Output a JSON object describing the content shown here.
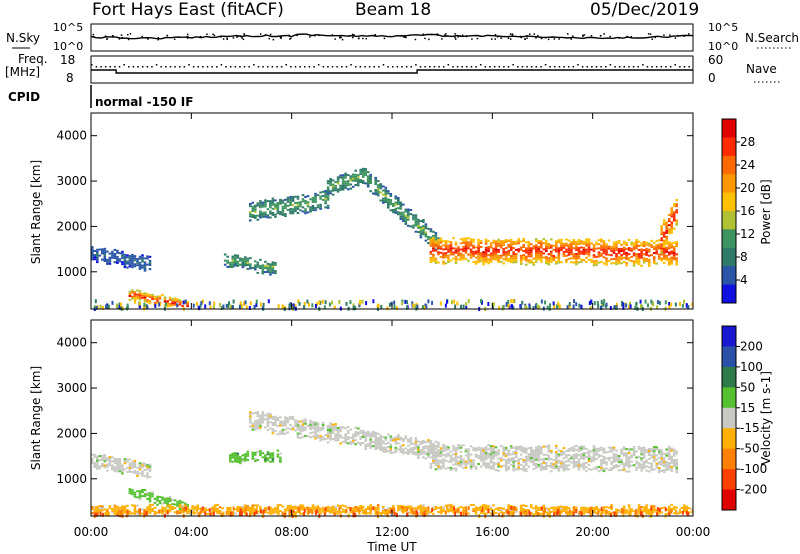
{
  "header": {
    "station": "Fort Hays East (fitACF)",
    "beam": "Beam 18",
    "date": "05/Dec/2019"
  },
  "colors": {
    "power_scale": [
      "#1010e0",
      "#2a55a8",
      "#2f7a68",
      "#3d9460",
      "#b0c232",
      "#ffc000",
      "#ff9800",
      "#ff6a00",
      "#ff2a00",
      "#e00000"
    ],
    "velocity_scale": [
      "#1818d0",
      "#2a50a8",
      "#2e7a4a",
      "#55c030",
      "#c9c9c4",
      "#ffb000",
      "#ff8000",
      "#ff4000",
      "#e00000"
    ]
  },
  "top_panels": {
    "nsky_label": "N.Sky",
    "nsky_ticks": [
      "10^5",
      "10^0"
    ],
    "nsearch_label": "N.Search",
    "nsearch_ticks": [
      "10^5",
      "10^0"
    ],
    "freq_label": "Freq.",
    "freq_unit": "[MHz]",
    "freq_ticks": [
      "18",
      "8"
    ],
    "nave_label": "Nave",
    "nave_ticks": [
      "60",
      "0"
    ],
    "cpid_label": "CPID",
    "cpid_text": "normal -150 IF"
  },
  "chart_data": [
    {
      "type": "heatmap",
      "ylabel": "Slant Range [km]",
      "yticks": [
        "4000",
        "3000",
        "2000",
        "1000"
      ],
      "ylim": [
        180,
        4500
      ],
      "colorbar_label": "Power [dB]",
      "colorbar_ticks": [
        "28",
        "24",
        "20",
        "16",
        "12",
        "8",
        "4"
      ],
      "colorbar_range": [
        0,
        32
      ],
      "features": [
        {
          "from_hour": 0.0,
          "to_hour": 2.4,
          "center_km": [
            1400,
            1150
          ],
          "width_km": 150,
          "level": "weak"
        },
        {
          "from_hour": 1.5,
          "to_hour": 3.9,
          "center_km": [
            480,
            220
          ],
          "width_km": 90,
          "level": "strong"
        },
        {
          "from_hour": 5.3,
          "to_hour": 7.3,
          "center_km": [
            1250,
            1050
          ],
          "width_km": 130,
          "level": "mid"
        },
        {
          "from_hour": 6.3,
          "to_hour": 9.4,
          "center_km": [
            2300,
            2550
          ],
          "width_km": 180,
          "level": "mid"
        },
        {
          "from_hour": 9.4,
          "to_hour": 11.0,
          "center_km": [
            2850,
            3100
          ],
          "width_km": 170,
          "level": "mid"
        },
        {
          "from_hour": 11.0,
          "to_hour": 13.8,
          "center_km": [
            3000,
            1600
          ],
          "width_km": 180,
          "level": "mid"
        },
        {
          "from_hour": 13.5,
          "to_hour": 23.4,
          "center_km": [
            1450,
            1400
          ],
          "width_km": 260,
          "level": "strong"
        },
        {
          "from_hour": 22.7,
          "to_hour": 23.4,
          "center_km": [
            1700,
            2400
          ],
          "width_km": 300,
          "level": "strong"
        }
      ]
    },
    {
      "type": "heatmap",
      "ylabel": "Slant Range [km]",
      "yticks": [
        "4000",
        "3000",
        "2000",
        "1000"
      ],
      "ylim": [
        180,
        4500
      ],
      "colorbar_label": "Velocity [m s-1]",
      "colorbar_ticks": [
        "200",
        "100",
        "50",
        "15",
        "-15",
        "-50",
        "-100",
        "-200"
      ],
      "colorbar_range": [
        -250,
        250
      ],
      "features": [
        {
          "from_hour": 0.0,
          "to_hour": 2.4,
          "center_km": [
            1400,
            1150
          ],
          "width_km": 150,
          "velocity": "near-zero"
        },
        {
          "from_hour": 1.5,
          "to_hour": 3.9,
          "center_km": [
            700,
            350
          ],
          "width_km": 100,
          "velocity": "15 to 50"
        },
        {
          "from_hour": 5.5,
          "to_hour": 7.5,
          "center_km": [
            1450,
            1500
          ],
          "width_km": 110,
          "velocity": "15 to 50"
        },
        {
          "from_hour": 6.3,
          "to_hour": 13.8,
          "center_km": [
            2300,
            1600
          ],
          "width_km": 200,
          "velocity": "near-zero"
        },
        {
          "from_hour": 13.5,
          "to_hour": 23.4,
          "center_km": [
            1450,
            1400
          ],
          "width_km": 250,
          "velocity": "near-zero"
        },
        {
          "from_hour": 0.0,
          "to_hour": 24.0,
          "center_km": [
            260,
            260
          ],
          "width_km": 120,
          "velocity": "-15 to -50"
        }
      ]
    }
  ],
  "xaxis": {
    "label": "Time UT",
    "ticks": [
      "00:00",
      "04:00",
      "08:00",
      "12:00",
      "16:00",
      "20:00",
      "00:00"
    ],
    "range_hours": [
      0,
      24
    ]
  }
}
